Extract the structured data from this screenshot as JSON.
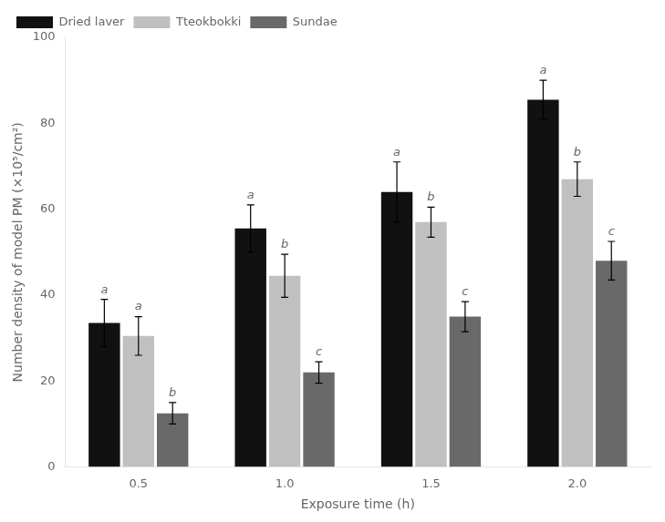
{
  "chart_data": {
    "type": "bar",
    "categories": [
      "0.5",
      "1.0",
      "1.5",
      "2.0"
    ],
    "series": [
      {
        "name": "Dried laver",
        "color": "#111111",
        "values": [
          33.5,
          55.5,
          64.0,
          85.5
        ],
        "errors": [
          5.5,
          5.5,
          7.0,
          4.5
        ],
        "labels": [
          "a",
          "a",
          "a",
          "a"
        ]
      },
      {
        "name": "Tteokbokki",
        "color": "#c0c0c0",
        "values": [
          30.5,
          44.5,
          57.0,
          67.0
        ],
        "errors": [
          4.5,
          5.0,
          3.5,
          4.0
        ],
        "labels": [
          "a",
          "b",
          "b",
          "b"
        ]
      },
      {
        "name": "Sundae",
        "color": "#696969",
        "values": [
          12.5,
          22.0,
          35.0,
          48.0
        ],
        "errors": [
          2.5,
          2.5,
          3.5,
          4.5
        ],
        "labels": [
          "b",
          "c",
          "c",
          "c"
        ]
      }
    ],
    "xlabel": "Exposure time (h)",
    "ylabel": "Number density of model PM (×10⁵/cm²)",
    "ylim": [
      0,
      100
    ],
    "yticks": [
      0,
      20,
      40,
      60,
      80,
      100
    ],
    "grid": false,
    "legend": "upper left"
  }
}
